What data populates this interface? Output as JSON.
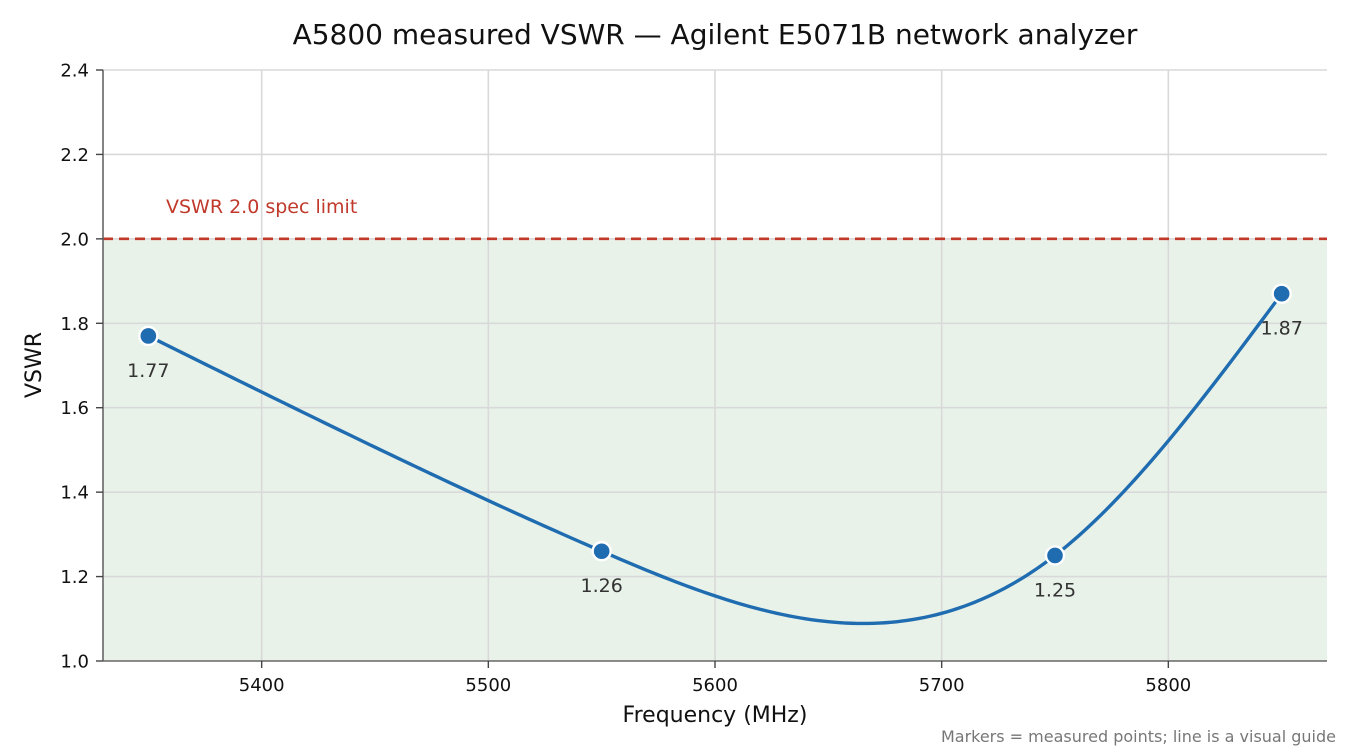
{
  "chart_data": {
    "type": "line",
    "title": "A5800 measured VSWR — Agilent E5071B network analyzer",
    "xlabel": "Frequency (MHz)",
    "ylabel": "VSWR",
    "xlim": [
      5330,
      5870
    ],
    "ylim": [
      1.0,
      2.4
    ],
    "x_ticks": [
      5400,
      5500,
      5600,
      5700,
      5800
    ],
    "y_ticks": [
      1.0,
      1.2,
      1.4,
      1.6,
      1.8,
      2.0,
      2.2,
      2.4
    ],
    "grid": true,
    "series": [
      {
        "x": [
          5350,
          5550,
          5750,
          5850
        ],
        "y": [
          1.77,
          1.26,
          1.25,
          1.87
        ],
        "labels": [
          "1.77",
          "1.26",
          "1.25",
          "1.87"
        ]
      }
    ],
    "reference_line": {
      "y": 2.0,
      "label": "VSWR 2.0 spec limit",
      "color": "#c0392b",
      "style": "dashed"
    },
    "shaded_region": {
      "y_from": 1.0,
      "y_to": 2.0,
      "color": "#e8f2e9"
    },
    "note": "Markers = measured points; line is a visual guide",
    "line_color": "#1f6cb0"
  }
}
